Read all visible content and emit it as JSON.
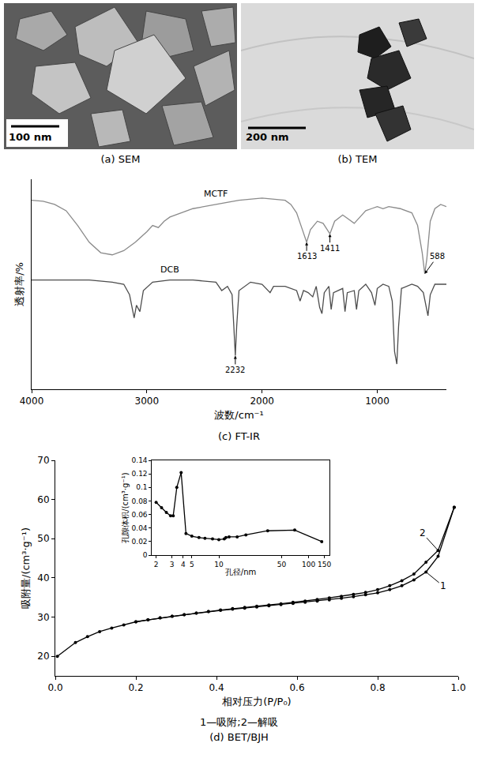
{
  "images": [
    {
      "caption": "(a) SEM",
      "scale_bar": "100 nm"
    },
    {
      "caption": "(b) TEM",
      "scale_bar": "200 nm"
    }
  ],
  "chart_data": [
    {
      "type": "line",
      "title": "(c) FT-IR",
      "xlabel": "波数/cm⁻¹",
      "ylabel": "透射率/%",
      "xlim": [
        4000,
        400
      ],
      "xticks": [
        4000,
        3000,
        2000,
        1000
      ],
      "ylim": [
        0,
        100
      ],
      "yticks": [],
      "tick_labels": "x",
      "grid": false,
      "line_style": "solid",
      "series": [
        {
          "name": "MCTF",
          "color": "#8a8a8a",
          "x": [
            4000,
            3900,
            3800,
            3700,
            3600,
            3500,
            3400,
            3300,
            3200,
            3100,
            3000,
            2950,
            2900,
            2850,
            2800,
            2600,
            2400,
            2200,
            2000,
            1900,
            1800,
            1750,
            1700,
            1650,
            1613,
            1580,
            1520,
            1470,
            1411,
            1370,
            1300,
            1250,
            1200,
            1150,
            1100,
            1050,
            1000,
            950,
            900,
            800,
            700,
            650,
            610,
            588,
            570,
            540,
            500,
            450,
            400
          ],
          "values": [
            90,
            89.5,
            88,
            85,
            78,
            70,
            65,
            64,
            66,
            70,
            75,
            78,
            77,
            80,
            82,
            86,
            88,
            90,
            91,
            90.5,
            90,
            88,
            84,
            76,
            70,
            76,
            80,
            79,
            74,
            80,
            83,
            81,
            79,
            82,
            85,
            86,
            87,
            86,
            87,
            86,
            84,
            78,
            65,
            55,
            62,
            80,
            86,
            88,
            87
          ]
        },
        {
          "name": "DCB",
          "color": "#4d4d4d",
          "x": [
            4000,
            3700,
            3500,
            3300,
            3200,
            3150,
            3110,
            3090,
            3060,
            3030,
            2950,
            2800,
            2600,
            2400,
            2350,
            2300,
            2260,
            2245,
            2232,
            2220,
            2200,
            2100,
            2000,
            1930,
            1900,
            1800,
            1700,
            1670,
            1640,
            1600,
            1560,
            1530,
            1500,
            1480,
            1460,
            1420,
            1400,
            1380,
            1300,
            1280,
            1260,
            1200,
            1180,
            1160,
            1100,
            1050,
            1020,
            1000,
            950,
            900,
            870,
            850,
            830,
            815,
            790,
            700,
            650,
            600,
            560,
            540,
            500,
            450,
            400
          ],
          "values": [
            52,
            52,
            52,
            51,
            50,
            45,
            34,
            40,
            37,
            47,
            51,
            52,
            52,
            51,
            47,
            49,
            45,
            30,
            16,
            30,
            47,
            51,
            50,
            46,
            49,
            49,
            47,
            42,
            47,
            46,
            44,
            49,
            39,
            36,
            46,
            49,
            38,
            46,
            48,
            37,
            46,
            47,
            38,
            47,
            50,
            46,
            40,
            48,
            50,
            49,
            42,
            18,
            12,
            30,
            48,
            50,
            49,
            46,
            35,
            45,
            50,
            50,
            50
          ]
        }
      ],
      "annotations": [
        {
          "text": "1613",
          "x": 1613,
          "series": "MCTF"
        },
        {
          "text": "1411",
          "x": 1411,
          "series": "MCTF"
        },
        {
          "text": "588",
          "x": 588,
          "series": "MCTF"
        },
        {
          "text": "2232",
          "x": 2232,
          "series": "DCB"
        }
      ]
    },
    {
      "type": "line",
      "title": "(d) BET/BJH",
      "subtitle": "1—吸附;2—解吸",
      "xlabel": "相对压力(P/P₀)",
      "ylabel": "吸附量/(cm³·g⁻¹)",
      "xlim": [
        0,
        1
      ],
      "xticks": [
        {
          "value": 0,
          "label": "0.0"
        },
        0.2,
        0.4,
        0.6,
        0.8,
        {
          "value": 1,
          "label": "1.0"
        }
      ],
      "ylim": [
        15,
        70
      ],
      "yticks": [
        20,
        30,
        40,
        50,
        60,
        70
      ],
      "grid": false,
      "marker": "circle",
      "line_style": "solid",
      "series": [
        {
          "name": "1",
          "color": "#000000",
          "x": [
            0.005,
            0.05,
            0.08,
            0.11,
            0.14,
            0.17,
            0.2,
            0.23,
            0.26,
            0.29,
            0.32,
            0.35,
            0.38,
            0.41,
            0.44,
            0.47,
            0.5,
            0.53,
            0.56,
            0.59,
            0.62,
            0.65,
            0.68,
            0.71,
            0.74,
            0.77,
            0.8,
            0.83,
            0.86,
            0.89,
            0.92,
            0.95,
            0.99
          ],
          "values": [
            20,
            23.5,
            25,
            26.3,
            27.2,
            28,
            28.8,
            29.3,
            29.8,
            30.2,
            30.6,
            31,
            31.4,
            31.7,
            32,
            32.3,
            32.6,
            32.9,
            33.2,
            33.5,
            33.8,
            34.1,
            34.4,
            34.8,
            35.2,
            35.7,
            36.2,
            37,
            38,
            39.5,
            41.5,
            45.5,
            58
          ]
        },
        {
          "name": "2",
          "color": "#000000",
          "x": [
            0.99,
            0.95,
            0.92,
            0.89,
            0.86,
            0.83,
            0.8,
            0.77,
            0.74,
            0.71,
            0.68,
            0.65,
            0.62,
            0.59,
            0.56,
            0.53,
            0.5,
            0.47,
            0.44,
            0.41,
            0.38,
            0.35,
            0.32,
            0.29,
            0.26,
            0.23,
            0.2
          ],
          "values": [
            58,
            47,
            44,
            41,
            39.3,
            38,
            37,
            36.3,
            35.8,
            35.3,
            34.9,
            34.5,
            34.1,
            33.8,
            33.4,
            33.1,
            32.8,
            32.5,
            32.2,
            31.8,
            31.4,
            31,
            30.6,
            30.2,
            29.8,
            29.3,
            28.8
          ]
        }
      ],
      "inset": {
        "type": "line",
        "xlabel": "孔径/nm",
        "ylabel": "孔隙体积/(cm³·g⁻¹)",
        "log": "x",
        "xlim": [
          1.8,
          170
        ],
        "xticks": [
          2,
          3,
          4,
          5,
          10,
          50,
          100,
          150
        ],
        "ylim": [
          0,
          0.14
        ],
        "yticks": [
          0,
          0.02,
          0.04,
          0.06,
          0.08,
          0.1,
          0.12,
          0.14
        ],
        "grid": false,
        "marker": "circle",
        "line_style": "solid",
        "series": [
          {
            "color": "#000000",
            "x": [
              2,
              2.3,
              2.6,
              2.9,
              3.1,
              3.4,
              3.8,
              4.3,
              5,
              6,
              7,
              8.5,
              10,
              11.5,
              12,
              13,
              16,
              20,
              35,
              70,
              140
            ],
            "values": [
              0.078,
              0.07,
              0.063,
              0.058,
              0.058,
              0.1,
              0.122,
              0.032,
              0.028,
              0.026,
              0.025,
              0.024,
              0.023,
              0.024,
              0.026,
              0.027,
              0.027,
              0.03,
              0.036,
              0.037,
              0.02
            ]
          }
        ]
      }
    }
  ]
}
